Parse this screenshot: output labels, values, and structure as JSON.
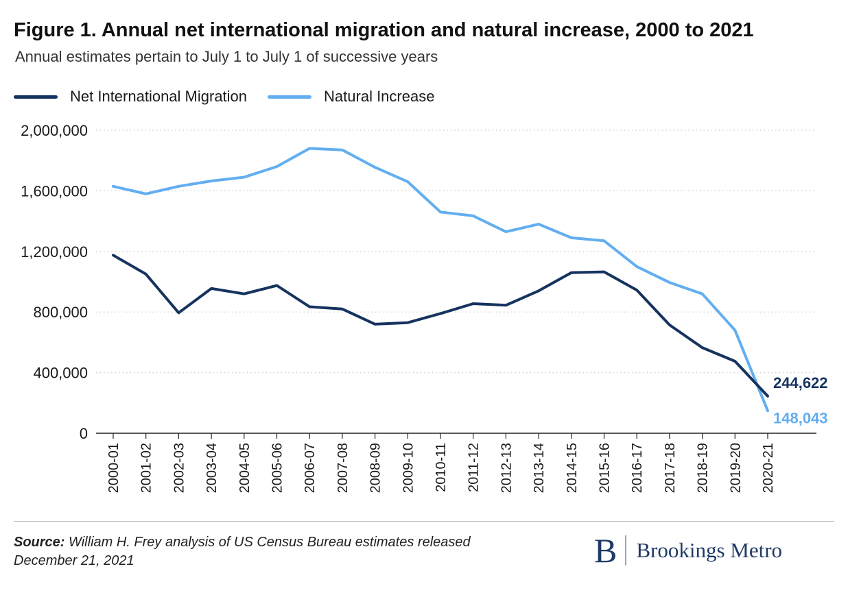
{
  "header": {
    "title": "Figure 1. Annual net international migration and natural increase, 2000 to 2021",
    "subtitle": "Annual estimates pertain to July 1 to July 1 of successive years"
  },
  "footer": {
    "source_label": "Source:",
    "source_text": "William H. Frey analysis of US Census Bureau estimates released December 21, 2021",
    "logo_letter": "B",
    "logo_text": "Brookings Metro"
  },
  "chart_data": {
    "type": "line",
    "title": "Figure 1. Annual net international migration and natural increase, 2000 to 2021",
    "subtitle": "Annual estimates pertain to July 1 to July 1 of successive years",
    "xlabel": "",
    "ylabel": "",
    "ylim": [
      0,
      2000000
    ],
    "yticks": [
      0,
      400000,
      800000,
      1200000,
      1600000,
      2000000
    ],
    "ytick_labels": [
      "0",
      "400,000",
      "800,000",
      "1,200,000",
      "1,600,000",
      "2,000,000"
    ],
    "grid": "horizontal dotted",
    "legend": "top-left",
    "categories": [
      "2000-01",
      "2001-02",
      "2002-03",
      "2003-04",
      "2004-05",
      "2005-06",
      "2006-07",
      "2007-08",
      "2008-09",
      "2009-10",
      "2010-11",
      "2011-12",
      "2012-13",
      "2013-14",
      "2014-15",
      "2015-16",
      "2016-17",
      "2017-18",
      "2018-19",
      "2019-20",
      "2020-21"
    ],
    "series": [
      {
        "name": "Net International Migration",
        "color": "#16335f",
        "values": [
          1175000,
          1050000,
          795000,
          955000,
          920000,
          975000,
          835000,
          820000,
          720000,
          730000,
          790000,
          855000,
          845000,
          940000,
          1060000,
          1065000,
          945000,
          715000,
          565000,
          475000,
          244622
        ],
        "end_label": "244,622"
      },
      {
        "name": "Natural Increase",
        "color": "#62aef0",
        "values": [
          1630000,
          1580000,
          1630000,
          1665000,
          1690000,
          1760000,
          1880000,
          1870000,
          1755000,
          1660000,
          1460000,
          1435000,
          1330000,
          1380000,
          1290000,
          1270000,
          1100000,
          995000,
          920000,
          680000,
          148043
        ],
        "end_label": "148,043"
      }
    ]
  }
}
